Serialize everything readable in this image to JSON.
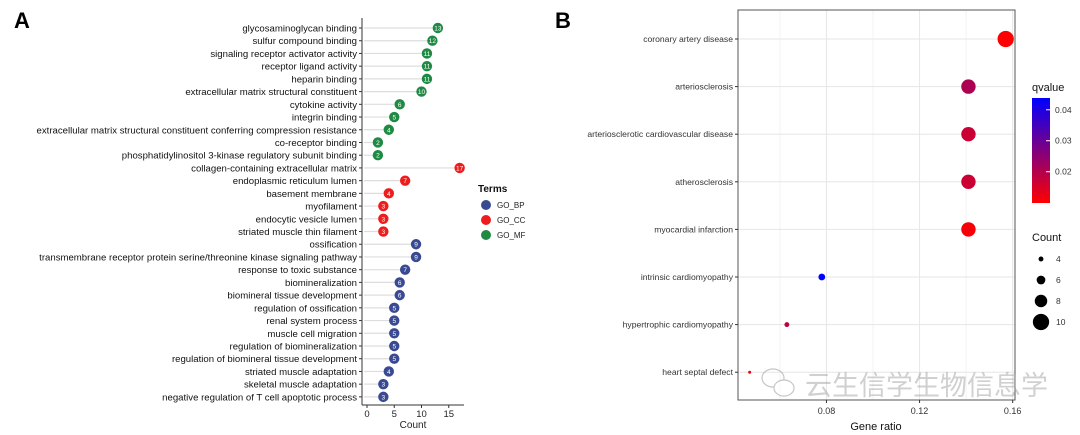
{
  "chart_data": [
    {
      "type": "lollipop",
      "panel_label": "A",
      "xlabel": "Count",
      "xlim": [
        0,
        18
      ],
      "xticks": [
        0,
        5,
        10,
        15
      ],
      "legend": {
        "title": "Terms",
        "placement": "right",
        "entries": [
          {
            "name": "GO_BP",
            "color": "#3A4A92"
          },
          {
            "name": "GO_CC",
            "color": "#EE1C1C"
          },
          {
            "name": "GO_MF",
            "color": "#1E8A44"
          }
        ]
      },
      "rows": [
        {
          "term": "glycosaminoglycan binding",
          "group": "GO_MF",
          "count": 13
        },
        {
          "term": "sulfur compound binding",
          "group": "GO_MF",
          "count": 12
        },
        {
          "term": "signaling receptor activator activity",
          "group": "GO_MF",
          "count": 11
        },
        {
          "term": "receptor ligand activity",
          "group": "GO_MF",
          "count": 11
        },
        {
          "term": "heparin binding",
          "group": "GO_MF",
          "count": 11
        },
        {
          "term": "extracellular matrix structural constituent",
          "group": "GO_MF",
          "count": 10
        },
        {
          "term": "cytokine activity",
          "group": "GO_MF",
          "count": 6
        },
        {
          "term": "integrin binding",
          "group": "GO_MF",
          "count": 5
        },
        {
          "term": "extracellular matrix structural constituent conferring compression resistance",
          "group": "GO_MF",
          "count": 4
        },
        {
          "term": "co-receptor binding",
          "group": "GO_MF",
          "count": 2
        },
        {
          "term": "phosphatidylinositol 3-kinase regulatory subunit binding",
          "group": "GO_MF",
          "count": 2
        },
        {
          "term": "collagen-containing extracellular matrix",
          "group": "GO_CC",
          "count": 17
        },
        {
          "term": "endoplasmic reticulum lumen",
          "group": "GO_CC",
          "count": 7
        },
        {
          "term": "basement membrane",
          "group": "GO_CC",
          "count": 4
        },
        {
          "term": "myofilament",
          "group": "GO_CC",
          "count": 3
        },
        {
          "term": "endocytic vesicle lumen",
          "group": "GO_CC",
          "count": 3
        },
        {
          "term": "striated muscle thin filament",
          "group": "GO_CC",
          "count": 3
        },
        {
          "term": "ossification",
          "group": "GO_BP",
          "count": 9
        },
        {
          "term": "transmembrane receptor protein serine/threonine kinase signaling pathway",
          "group": "GO_BP",
          "count": 9
        },
        {
          "term": "response to toxic substance",
          "group": "GO_BP",
          "count": 7
        },
        {
          "term": "biomineralization",
          "group": "GO_BP",
          "count": 6
        },
        {
          "term": "biomineral tissue development",
          "group": "GO_BP",
          "count": 6
        },
        {
          "term": "regulation of ossification",
          "group": "GO_BP",
          "count": 5
        },
        {
          "term": "renal system process",
          "group": "GO_BP",
          "count": 5
        },
        {
          "term": "muscle cell migration",
          "group": "GO_BP",
          "count": 5
        },
        {
          "term": "regulation of biomineralization",
          "group": "GO_BP",
          "count": 5
        },
        {
          "term": "regulation of biomineral tissue development",
          "group": "GO_BP",
          "count": 5
        },
        {
          "term": "striated muscle adaptation",
          "group": "GO_BP",
          "count": 4
        },
        {
          "term": "skeletal muscle adaptation",
          "group": "GO_BP",
          "count": 3
        },
        {
          "term": "negative regulation of T cell apoptotic process",
          "group": "GO_BP",
          "count": 3
        }
      ]
    },
    {
      "type": "scatter",
      "panel_label": "B",
      "xlabel": "Gene ratio",
      "xlim": [
        0.042,
        0.161
      ],
      "xticks": [
        0.08,
        0.12,
        0.16
      ],
      "grid": true,
      "color_legend": {
        "title": "qvalue",
        "range": [
          0.0099,
          0.0438
        ],
        "ticks": [
          0.04,
          0.03,
          0.02
        ],
        "low_color": "#FF0000",
        "high_color": "#0000FF"
      },
      "size_legend": {
        "title": "Count",
        "values": [
          4,
          6,
          8,
          10
        ]
      },
      "points": [
        {
          "term": "coronary artery disease",
          "gene_ratio": 0.157,
          "count": 10,
          "qvalue": 0.01
        },
        {
          "term": "arteriosclerosis",
          "gene_ratio": 0.141,
          "count": 9,
          "qvalue": 0.021
        },
        {
          "term": "arteriosclerotic cardiovascular disease",
          "gene_ratio": 0.141,
          "count": 9,
          "qvalue": 0.017
        },
        {
          "term": "atherosclerosis",
          "gene_ratio": 0.141,
          "count": 9,
          "qvalue": 0.017
        },
        {
          "term": "myocardial infarction",
          "gene_ratio": 0.141,
          "count": 9,
          "qvalue": 0.011
        },
        {
          "term": "intrinsic cardiomyopathy",
          "gene_ratio": 0.078,
          "count": 5,
          "qvalue": 0.044
        },
        {
          "term": "hypertrophic cardiomyopathy",
          "gene_ratio": 0.063,
          "count": 4,
          "qvalue": 0.018
        },
        {
          "term": "heart septal defect",
          "gene_ratio": 0.047,
          "count": 3,
          "qvalue": 0.012
        }
      ]
    }
  ],
  "watermark": "云生信学生物信息学"
}
